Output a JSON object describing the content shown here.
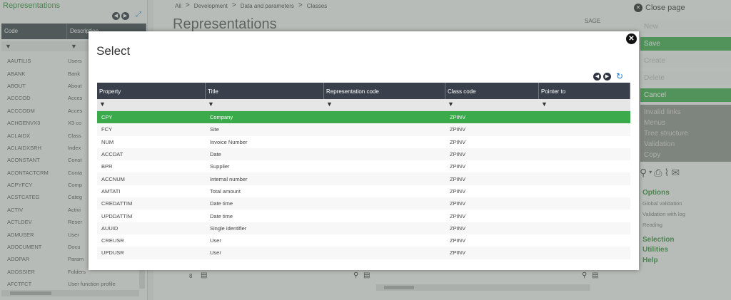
{
  "left_panel": {
    "title": "Representations",
    "columns": [
      "Code",
      "Description"
    ],
    "rows": [
      {
        "code": "AAUTILIS",
        "desc": "Users"
      },
      {
        "code": "ABANK",
        "desc": "Bank"
      },
      {
        "code": "ABOUT",
        "desc": "About"
      },
      {
        "code": "ACCCOD",
        "desc": "Acces"
      },
      {
        "code": "ACCCODM",
        "desc": "Acces"
      },
      {
        "code": "ACHGENVX3",
        "desc": "X3 co"
      },
      {
        "code": "ACLAIDX",
        "desc": "Class"
      },
      {
        "code": "ACLAIDXSRH",
        "desc": "Index"
      },
      {
        "code": "ACONSTANT",
        "desc": "Const"
      },
      {
        "code": "ACONTACTCRM",
        "desc": "Conta"
      },
      {
        "code": "ACPYFCY",
        "desc": "Comp"
      },
      {
        "code": "ACSTCATEG",
        "desc": "Categ"
      },
      {
        "code": "ACTIV",
        "desc": "Activi"
      },
      {
        "code": "ACTLDEV",
        "desc": "Reser"
      },
      {
        "code": "ADMUSER",
        "desc": "User"
      },
      {
        "code": "ADOCUMENT",
        "desc": "Docu"
      },
      {
        "code": "ADOPAR",
        "desc": "Param"
      },
      {
        "code": "ADOSSIER",
        "desc": "Folders"
      },
      {
        "code": "AFCTFCT",
        "desc": "User function profile"
      }
    ]
  },
  "center": {
    "breadcrumb": [
      "All",
      "Development",
      "Data and parameters",
      "Classes"
    ],
    "page_title": "Representations",
    "sage_label": "SAGE",
    "bottom_count": "8"
  },
  "right_panel": {
    "close_label": "Close page",
    "buttons": {
      "new": "New",
      "save": "Save",
      "create": "Create",
      "delete": "Delete",
      "cancel": "Cancel"
    },
    "group": [
      "Invalid links",
      "Menus",
      "Tree structure",
      "Validation",
      "Copy"
    ],
    "options_label": "Options",
    "options": [
      "Global validation",
      "Validation with log",
      "Reading"
    ],
    "selection_label": "Selection",
    "utilities_label": "Utilities",
    "help_label": "Help"
  },
  "modal": {
    "title": "Select",
    "columns": [
      "Property",
      "Title",
      "Representation code",
      "Class code",
      "Pointer to"
    ],
    "rows": [
      {
        "property": "CPY",
        "title": "Company",
        "rep": "",
        "class": "ZPINV",
        "ptr": "",
        "selected": true
      },
      {
        "property": "FCY",
        "title": "Site",
        "rep": "",
        "class": "ZPINV",
        "ptr": ""
      },
      {
        "property": "NUM",
        "title": "Invoice Number",
        "rep": "",
        "class": "ZPINV",
        "ptr": ""
      },
      {
        "property": "ACCDAT",
        "title": "Date",
        "rep": "",
        "class": "ZPINV",
        "ptr": ""
      },
      {
        "property": "BPR",
        "title": "Supplier",
        "rep": "",
        "class": "ZPINV",
        "ptr": ""
      },
      {
        "property": "ACCNUM",
        "title": "Internal number",
        "rep": "",
        "class": "ZPINV",
        "ptr": ""
      },
      {
        "property": "AMTATI",
        "title": "Total amount",
        "rep": "",
        "class": "ZPINV",
        "ptr": ""
      },
      {
        "property": "CREDATTIM",
        "title": "Date time",
        "rep": "",
        "class": "ZPINV",
        "ptr": ""
      },
      {
        "property": "UPDDATTIM",
        "title": "Date time",
        "rep": "",
        "class": "ZPINV",
        "ptr": ""
      },
      {
        "property": "AUUID",
        "title": "Single identifier",
        "rep": "",
        "class": "ZPINV",
        "ptr": ""
      },
      {
        "property": "CREUSR",
        "title": "User",
        "rep": "",
        "class": "ZPINV",
        "ptr": ""
      },
      {
        "property": "UPDUSR",
        "title": "User",
        "rep": "",
        "class": "ZPINV",
        "ptr": ""
      }
    ]
  },
  "colors": {
    "accent_green": "#3aaa4a",
    "header_dark": "#3a404b",
    "link_blue": "#1b7bd1"
  }
}
